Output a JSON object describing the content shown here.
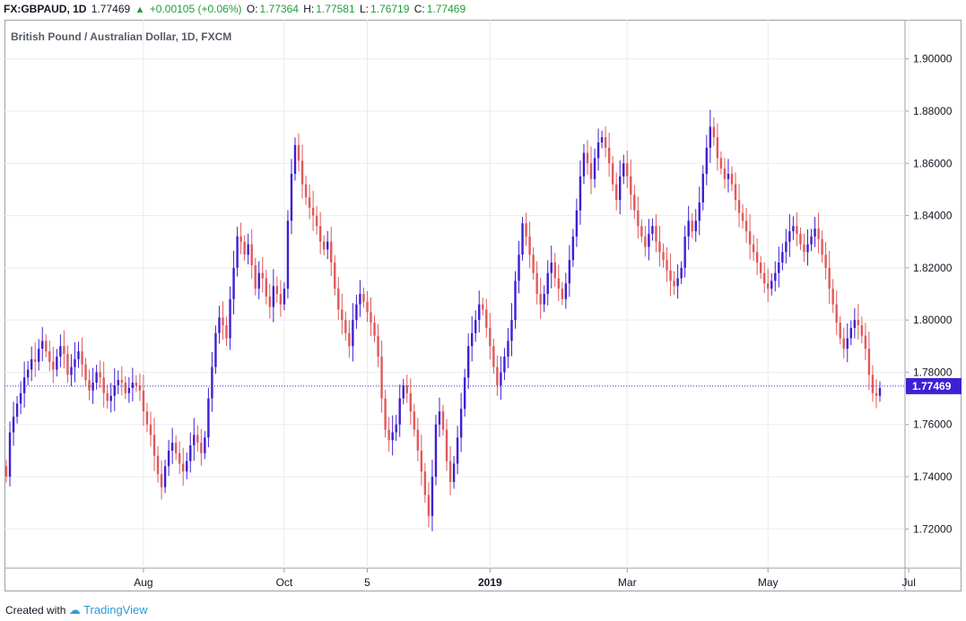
{
  "header": {
    "symbol": "FX:GBPAUD, 1D",
    "last": "1.77469",
    "change": "+0.00105 (+0.06%)",
    "o_label": "O:",
    "o_value": "1.77364",
    "h_label": "H:",
    "h_value": "1.77581",
    "l_label": "L:",
    "l_value": "1.76719",
    "c_label": "C:",
    "c_value": "1.77469"
  },
  "chart_data": {
    "type": "candlestick",
    "title": "British Pound / Australian Dollar, 1D, FXCM",
    "xlabel": "",
    "ylabel": "",
    "ylim": [
      1.705,
      1.915
    ],
    "y_ticks": [
      "1.90000",
      "1.88000",
      "1.86000",
      "1.84000",
      "1.82000",
      "1.80000",
      "1.78000",
      "1.76000",
      "1.74000",
      "1.72000"
    ],
    "y_tick_values": [
      1.9,
      1.88,
      1.86,
      1.84,
      1.82,
      1.8,
      1.78,
      1.76,
      1.74,
      1.72
    ],
    "x_ticks": [
      "Aug",
      "Oct",
      "5",
      "2019",
      "Mar",
      "May",
      "Jul"
    ],
    "x_tick_index": [
      38,
      77,
      100,
      134,
      172,
      211,
      250
    ],
    "last_price": 1.77469,
    "last_price_label": "1.77469",
    "up_color": "#3f1fd4",
    "down_color": "#e05a5a",
    "grid": true,
    "closes": [
      1.74,
      1.757,
      1.763,
      1.768,
      1.772,
      1.778,
      1.781,
      1.785,
      1.784,
      1.789,
      1.792,
      1.788,
      1.784,
      1.781,
      1.786,
      1.79,
      1.787,
      1.779,
      1.782,
      1.785,
      1.788,
      1.783,
      1.777,
      1.773,
      1.776,
      1.78,
      1.778,
      1.772,
      1.769,
      1.771,
      1.775,
      1.777,
      1.776,
      1.772,
      1.774,
      1.776,
      1.775,
      1.773,
      1.765,
      1.76,
      1.756,
      1.748,
      1.741,
      1.736,
      1.744,
      1.75,
      1.753,
      1.749,
      1.745,
      1.742,
      1.746,
      1.752,
      1.756,
      1.753,
      1.749,
      1.755,
      1.77,
      1.782,
      1.795,
      1.801,
      1.798,
      1.793,
      1.808,
      1.82,
      1.832,
      1.83,
      1.825,
      1.829,
      1.821,
      1.812,
      1.818,
      1.816,
      1.809,
      1.805,
      1.813,
      1.81,
      1.806,
      1.812,
      1.838,
      1.856,
      1.867,
      1.861,
      1.852,
      1.847,
      1.843,
      1.84,
      1.836,
      1.83,
      1.827,
      1.83,
      1.822,
      1.812,
      1.804,
      1.8,
      1.795,
      1.79,
      1.8,
      1.806,
      1.81,
      1.807,
      1.803,
      1.799,
      1.794,
      1.786,
      1.77,
      1.758,
      1.754,
      1.757,
      1.76,
      1.77,
      1.775,
      1.772,
      1.765,
      1.758,
      1.75,
      1.742,
      1.733,
      1.725,
      1.74,
      1.76,
      1.765,
      1.758,
      1.746,
      1.738,
      1.745,
      1.755,
      1.766,
      1.778,
      1.79,
      1.795,
      1.8,
      1.806,
      1.804,
      1.797,
      1.79,
      1.782,
      1.775,
      1.78,
      1.786,
      1.792,
      1.8,
      1.815,
      1.825,
      1.837,
      1.832,
      1.825,
      1.818,
      1.81,
      1.806,
      1.81,
      1.818,
      1.822,
      1.816,
      1.812,
      1.808,
      1.814,
      1.823,
      1.832,
      1.842,
      1.855,
      1.864,
      1.86,
      1.854,
      1.862,
      1.868,
      1.87,
      1.866,
      1.86,
      1.852,
      1.846,
      1.855,
      1.86,
      1.855,
      1.848,
      1.842,
      1.836,
      1.832,
      1.828,
      1.833,
      1.836,
      1.83,
      1.826,
      1.823,
      1.819,
      1.815,
      1.813,
      1.816,
      1.82,
      1.832,
      1.838,
      1.834,
      1.838,
      1.845,
      1.856,
      1.866,
      1.874,
      1.87,
      1.862,
      1.858,
      1.854,
      1.856,
      1.852,
      1.846,
      1.841,
      1.838,
      1.834,
      1.829,
      1.826,
      1.822,
      1.818,
      1.814,
      1.812,
      1.815,
      1.818,
      1.822,
      1.826,
      1.83,
      1.834,
      1.836,
      1.833,
      1.829,
      1.826,
      1.829,
      1.832,
      1.835,
      1.831,
      1.825,
      1.82,
      1.812,
      1.806,
      1.799,
      1.793,
      1.789,
      1.793,
      1.797,
      1.8,
      1.798,
      1.794,
      1.789,
      1.779,
      1.772,
      1.771,
      1.774
    ]
  }
}
